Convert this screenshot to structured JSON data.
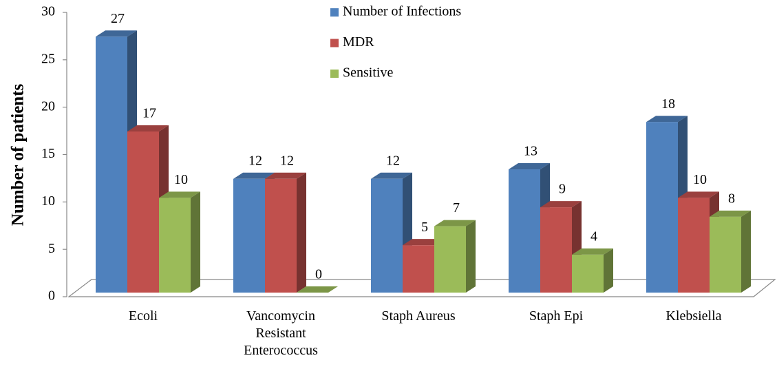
{
  "chart_data": {
    "type": "bar3d",
    "ylabel": "Number of patients",
    "categories": [
      "Ecoli",
      "Vancomycin Resistant Enterococcus",
      "Staph Aureus",
      "Staph Epi",
      "Klebsiella"
    ],
    "series": [
      {
        "name": "Number of Infections",
        "color": "#4f81bd",
        "values": [
          27,
          12,
          12,
          13,
          18
        ]
      },
      {
        "name": "MDR",
        "color": "#c0504d",
        "values": [
          17,
          12,
          5,
          9,
          10
        ]
      },
      {
        "name": "Sensitive",
        "color": "#9bbb59",
        "values": [
          10,
          0,
          7,
          4,
          8
        ]
      }
    ],
    "ylim": [
      0,
      30
    ],
    "yticks": [
      0,
      5,
      10,
      15,
      20,
      25,
      30
    ],
    "legend": "top"
  }
}
